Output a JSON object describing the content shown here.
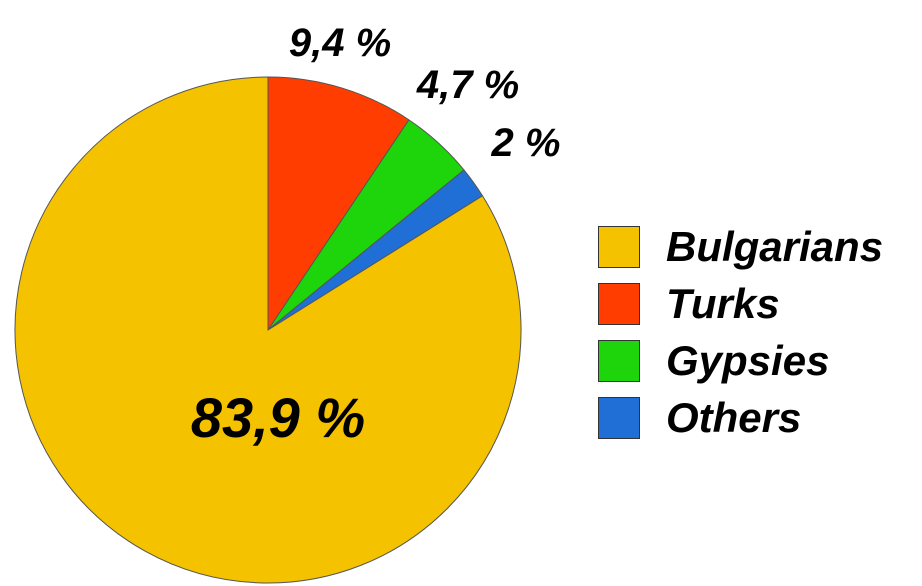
{
  "chart_data": {
    "type": "pie",
    "start_angle_deg": 0,
    "direction": "clockwise",
    "legend_position": "right",
    "slices": [
      {
        "name": "Bulgarians",
        "value": 83.9,
        "label": "83,9 %",
        "color": "#F5C200"
      },
      {
        "name": "Turks",
        "value": 9.4,
        "label": "9,4 %",
        "color": "#FF3D00"
      },
      {
        "name": "Gypsies",
        "value": 4.7,
        "label": "4,7 %",
        "color": "#1ED40A"
      },
      {
        "name": "Others",
        "value": 2,
        "label": "2 %",
        "color": "#1F6FD6"
      }
    ]
  }
}
